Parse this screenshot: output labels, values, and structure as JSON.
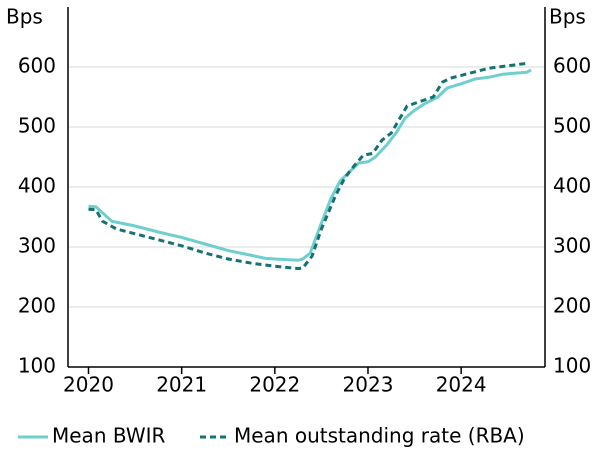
{
  "chart_data": {
    "type": "line",
    "y_label": "Bps",
    "y2_label": "Bps",
    "xlim": [
      2019.78,
      2024.9
    ],
    "xticks": [
      2020,
      2021,
      2022,
      2023,
      2024
    ],
    "ylim": [
      100,
      700
    ],
    "yticks": [
      100,
      200,
      300,
      400,
      500,
      600
    ],
    "y2lim": [
      100,
      700
    ],
    "y2ticks": [
      100,
      200,
      300,
      400,
      500,
      600
    ],
    "grid": true,
    "series": [
      {
        "name": "Mean BWIR",
        "color": "#6fcfcf",
        "dashed": false,
        "x": [
          2020.0,
          2020.08,
          2020.25,
          2020.5,
          2020.75,
          2021.0,
          2021.25,
          2021.5,
          2021.75,
          2021.9,
          2022.0,
          2022.25,
          2022.3,
          2022.38,
          2022.5,
          2022.6,
          2022.7,
          2022.8,
          2022.9,
          2023.0,
          2023.08,
          2023.2,
          2023.3,
          2023.4,
          2023.5,
          2023.6,
          2023.75,
          2023.85,
          2024.0,
          2024.15,
          2024.3,
          2024.45,
          2024.6,
          2024.7,
          2024.75
        ],
        "values": [
          368,
          367,
          343,
          335,
          325,
          316,
          305,
          294,
          286,
          281,
          280,
          278,
          280,
          290,
          340,
          380,
          410,
          425,
          440,
          442,
          450,
          470,
          490,
          515,
          528,
          538,
          550,
          565,
          572,
          580,
          583,
          588,
          590,
          591,
          595
        ]
      },
      {
        "name": "Mean outstanding rate (RBA)",
        "color": "#137272",
        "dashed": true,
        "x": [
          2020.0,
          2020.08,
          2020.15,
          2020.3,
          2020.5,
          2020.75,
          2021.0,
          2021.25,
          2021.5,
          2021.75,
          2022.0,
          2022.25,
          2022.3,
          2022.4,
          2022.5,
          2022.65,
          2022.75,
          2022.85,
          2022.95,
          2023.05,
          2023.15,
          2023.25,
          2023.42,
          2023.55,
          2023.7,
          2023.8,
          2023.9,
          2024.0,
          2024.15,
          2024.3,
          2024.5,
          2024.65,
          2024.72
        ],
        "values": [
          363,
          362,
          343,
          330,
          322,
          312,
          302,
          290,
          280,
          273,
          268,
          264,
          265,
          285,
          330,
          385,
          415,
          435,
          453,
          456,
          478,
          490,
          535,
          542,
          550,
          575,
          582,
          586,
          592,
          598,
          602,
          605,
          606
        ]
      }
    ]
  }
}
